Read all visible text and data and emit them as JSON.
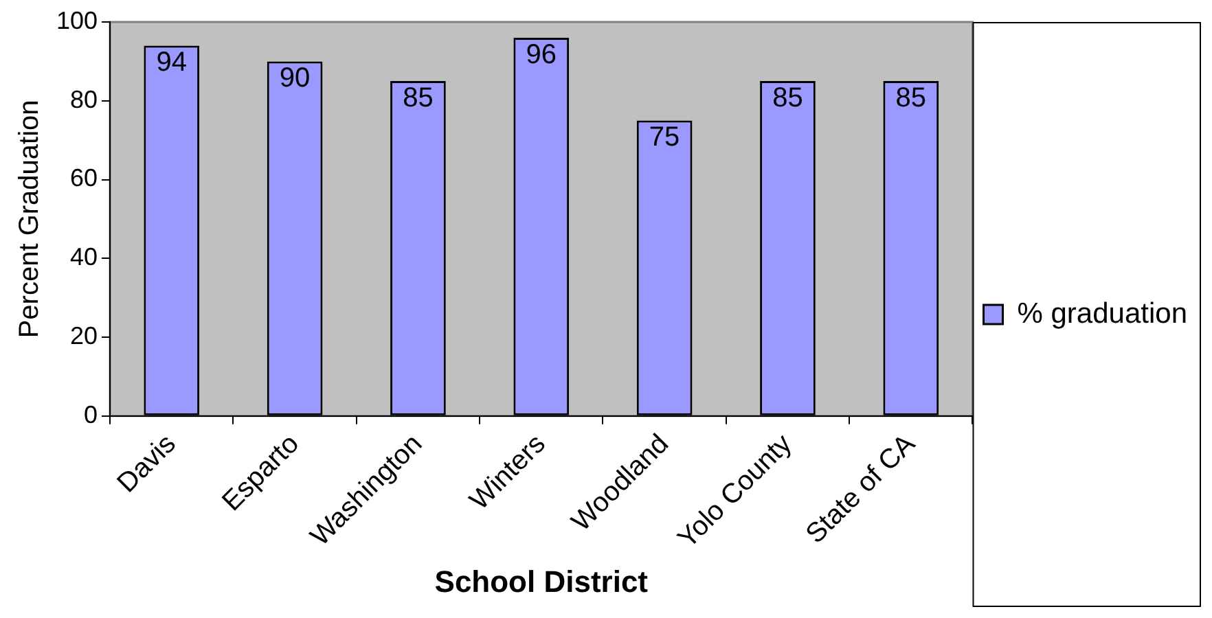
{
  "chart_data": {
    "type": "bar",
    "xlabel": "School District",
    "ylabel": "Percent Graduation",
    "categories": [
      "Davis",
      "Esparto",
      "Washington",
      "Winters",
      "Woodland",
      "Yolo County",
      "State of CA"
    ],
    "series": [
      {
        "name": "% graduation",
        "color": "#9999ff",
        "values": [
          94,
          90,
          85,
          96,
          75,
          85,
          85
        ]
      }
    ],
    "ylim": [
      0,
      100
    ],
    "yticks": [
      0,
      20,
      40,
      60,
      80,
      100
    ],
    "data_labels": true,
    "legend": "right"
  }
}
